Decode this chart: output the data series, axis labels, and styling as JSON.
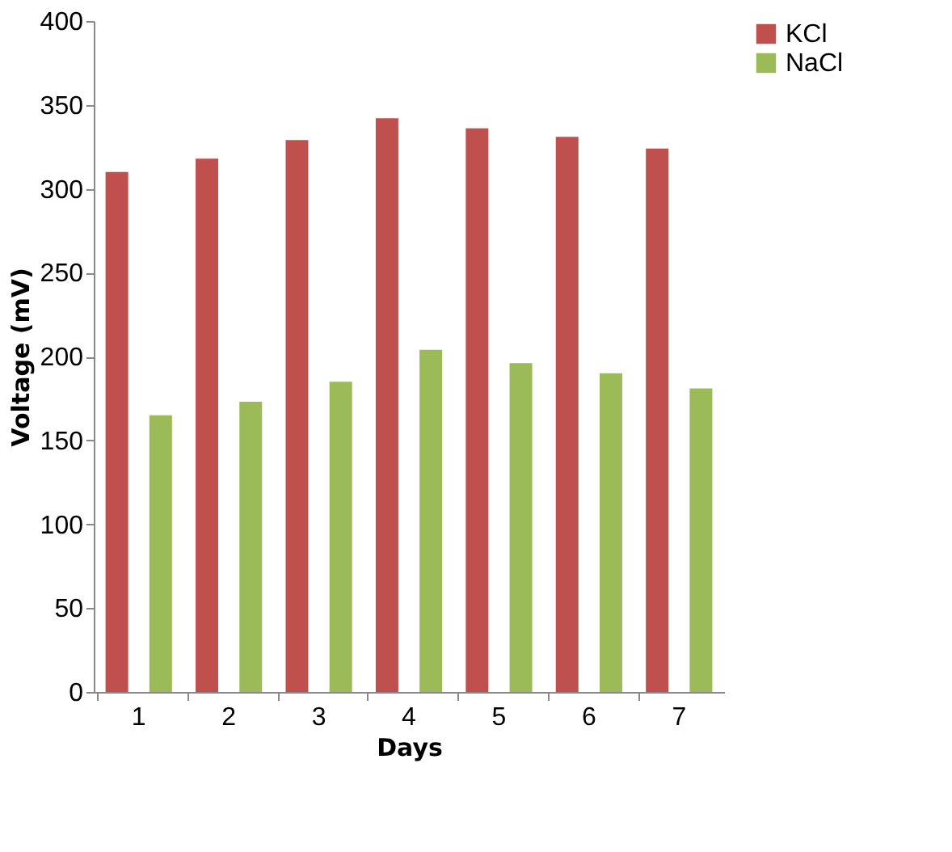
{
  "chart_data": {
    "type": "bar",
    "xlabel": "Days",
    "ylabel": "Voltage (mV)",
    "categories": [
      "1",
      "2",
      "3",
      "4",
      "5",
      "6",
      "7"
    ],
    "series": [
      {
        "name": "KCl",
        "color": "#c0504d",
        "values": [
          310,
          318,
          329,
          342,
          336,
          331,
          324
        ]
      },
      {
        "name": "NaCl",
        "color": "#9bbb59",
        "values": [
          165,
          173,
          185,
          204,
          196,
          190,
          181
        ]
      }
    ],
    "ylim": [
      0,
      400
    ],
    "yticks": [
      0,
      50,
      100,
      150,
      200,
      250,
      300,
      350,
      400
    ],
    "grid": false,
    "legend": "right"
  }
}
